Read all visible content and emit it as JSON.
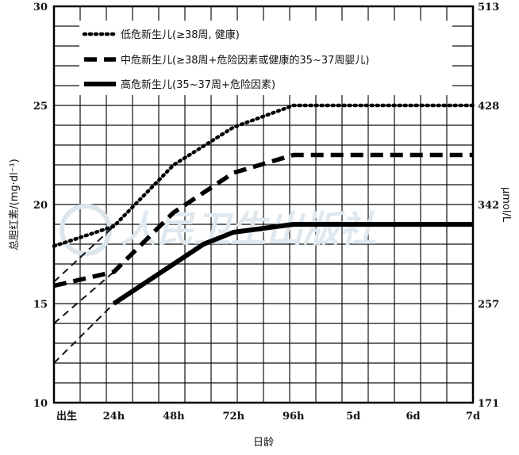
{
  "chart_data": {
    "type": "line",
    "xlabel": "日龄",
    "ylabel": "总胆红素/(mg·dl⁻¹)",
    "ylabel_right": "μmol/L",
    "ylim": [
      10,
      30
    ],
    "x_categories": [
      "出生",
      "24h",
      "48h",
      "72h",
      "96h",
      "5d",
      "6d",
      "7d"
    ],
    "y_ticks_left": [
      10,
      15,
      20,
      25,
      30
    ],
    "y_ticks_right": [
      {
        "value": 10,
        "label": "171"
      },
      {
        "value": 15,
        "label": "257"
      },
      {
        "value": 20,
        "label": "342"
      },
      {
        "value": 25,
        "label": "428"
      },
      {
        "value": 30,
        "label": "513"
      }
    ],
    "grid": true,
    "legend_position": "top-left",
    "series": [
      {
        "name": "低危新生儿(≥38周, 健康)",
        "style": "dotted",
        "points": [
          [
            0,
            17.9
          ],
          [
            24,
            18.9
          ],
          [
            48,
            22.0
          ],
          [
            72,
            23.9
          ],
          [
            96,
            25.0
          ],
          [
            168,
            25.0
          ]
        ]
      },
      {
        "name": "中危新生儿(≥38周+危险因素或健康的35~37周婴儿)",
        "style": "dashed",
        "points": [
          [
            0,
            15.9
          ],
          [
            24,
            16.6
          ],
          [
            48,
            19.6
          ],
          [
            72,
            21.6
          ],
          [
            96,
            22.5
          ],
          [
            168,
            22.5
          ]
        ]
      },
      {
        "name": "高危新生儿(35~37周+危险因素)",
        "style": "solid",
        "points": [
          [
            24,
            15.0
          ],
          [
            48,
            17.0
          ],
          [
            60,
            18.0
          ],
          [
            72,
            18.6
          ],
          [
            96,
            19.0
          ],
          [
            168,
            19.0
          ]
        ]
      }
    ],
    "guide_lines": [
      {
        "style": "thin-dashed",
        "points": [
          [
            0,
            16.1
          ],
          [
            24,
            18.9
          ]
        ]
      },
      {
        "style": "thin-dashed",
        "points": [
          [
            0,
            14.0
          ],
          [
            24,
            16.6
          ]
        ]
      },
      {
        "style": "thin-dashed",
        "points": [
          [
            0,
            12.0
          ],
          [
            24,
            15.0
          ]
        ]
      }
    ],
    "watermark": "人民卫生出版社"
  }
}
